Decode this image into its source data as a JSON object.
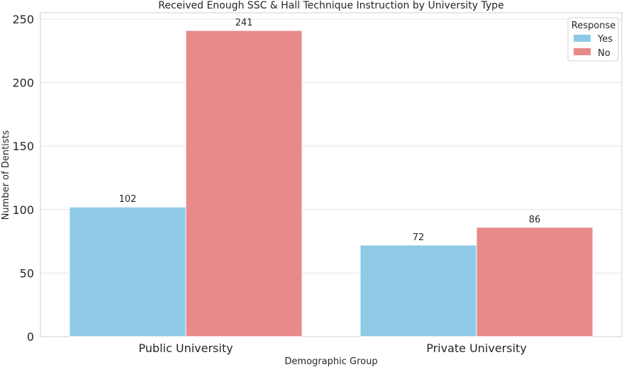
{
  "chart_data": {
    "type": "bar",
    "title": "Received Enough SSC & Hall Technique Instruction by University Type",
    "xlabel": "Demographic Group",
    "ylabel": "Number of Dentists",
    "categories": [
      "Public University",
      "Private University"
    ],
    "series": [
      {
        "name": "Yes",
        "values": [
          102,
          72
        ],
        "color": "#8ecae6"
      },
      {
        "name": "No",
        "values": [
          241,
          86
        ],
        "color": "#e8898a"
      }
    ],
    "ylim": [
      0,
      255
    ],
    "yticks": [
      0,
      50,
      100,
      150,
      200,
      250
    ],
    "grid": true,
    "legend": {
      "title": "Response",
      "placement": "top-right"
    }
  }
}
